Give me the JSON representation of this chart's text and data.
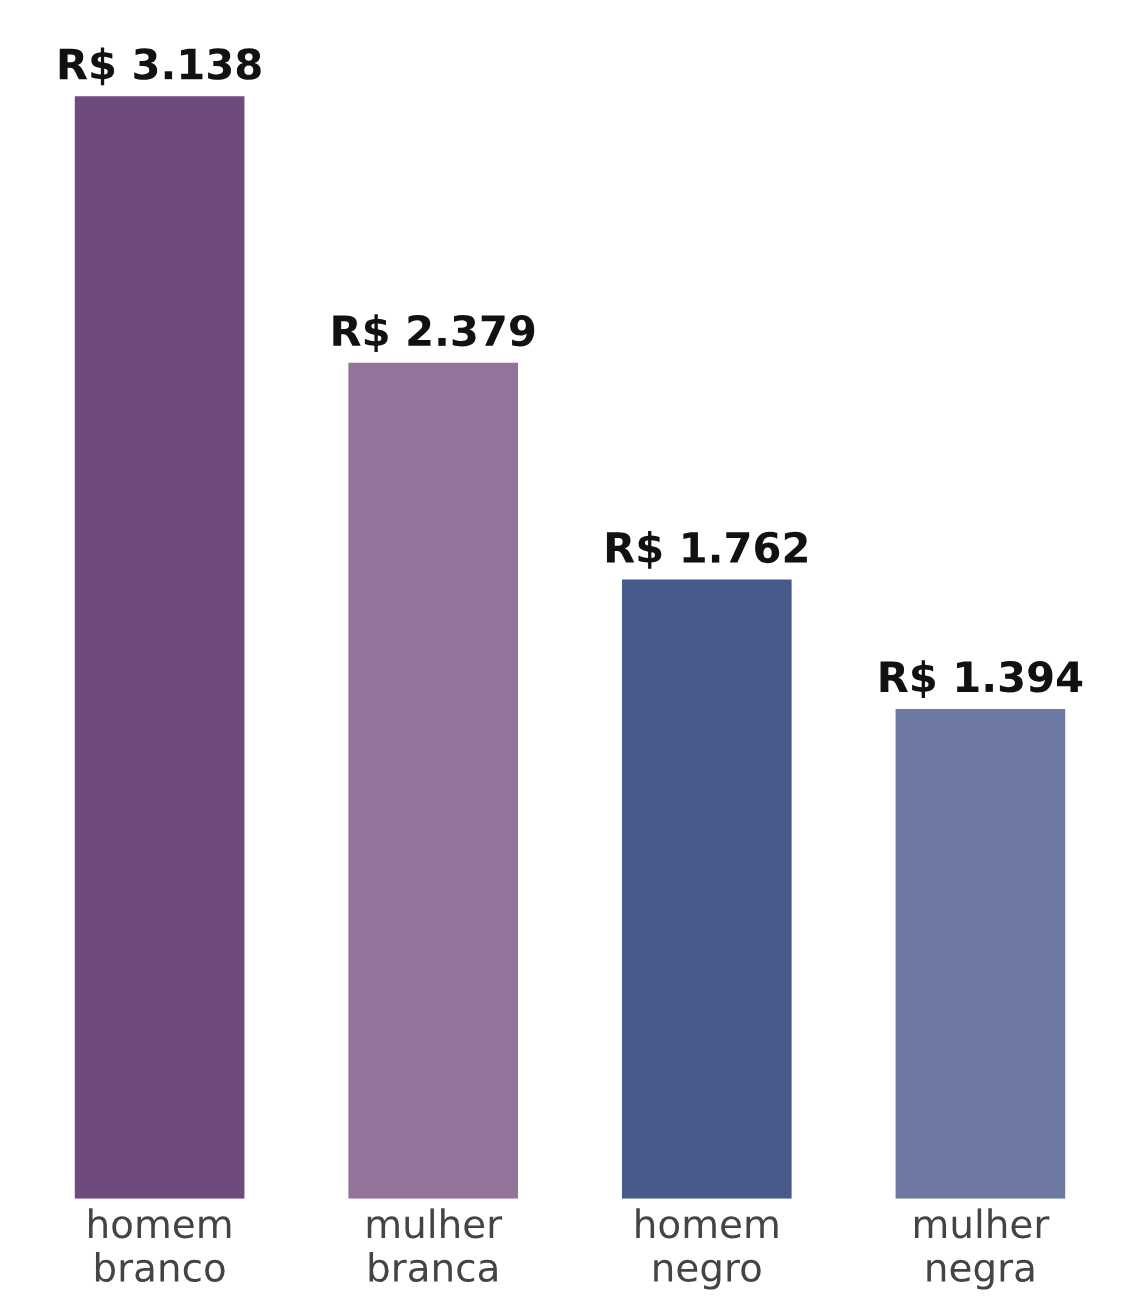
{
  "chart_data": {
    "type": "bar",
    "categories": [
      "homem\nbranco",
      "mulher\nbranca",
      "homem\nnegro",
      "mulher\nnegra"
    ],
    "values": [
      3138,
      2379,
      1762,
      1394
    ],
    "value_labels": [
      "R$ 3.138",
      "R$ 2.379",
      "R$ 1.762",
      "R$ 1.394"
    ],
    "colors": [
      "#6e4a7e",
      "#937399",
      "#485a8a",
      "#6e7aa3"
    ],
    "grid": false,
    "legend": false
  }
}
